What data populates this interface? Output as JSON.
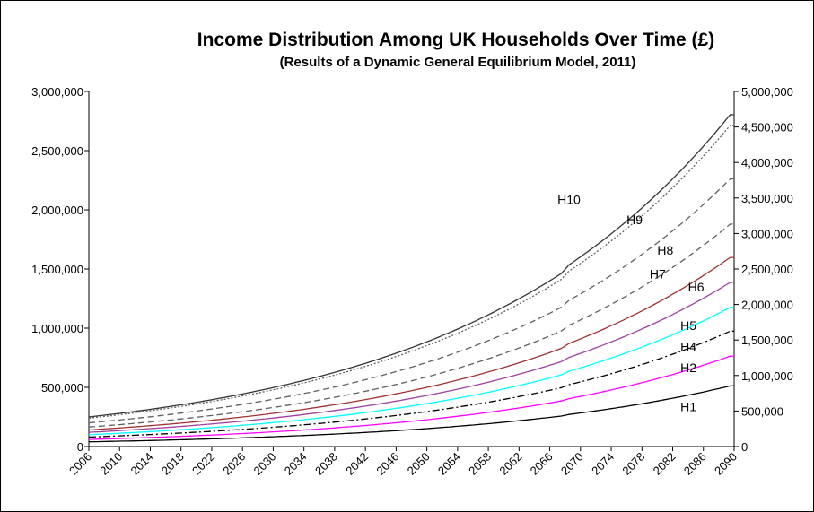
{
  "chart_data": {
    "type": "line",
    "title": "Income  Distribution Among UK Households  Over Time (£)",
    "subtitle": "(Results of a Dynamic General Equilibrium Model, 2011)",
    "xlabel": "",
    "ylabel": "",
    "x_ticks": [
      "2006",
      "2010",
      "2014",
      "2018",
      "2022",
      "2026",
      "2030",
      "2034",
      "2038",
      "2042",
      "2046",
      "2050",
      "2054",
      "2058",
      "2062",
      "2066",
      "2070",
      "2074",
      "2078",
      "2082",
      "2086",
      "2090"
    ],
    "xlim": [
      2006,
      2090
    ],
    "ylim_left": [
      0,
      3000000
    ],
    "yticks_left": [
      "0",
      "500,000",
      "1,000,000",
      "1,500,000",
      "2,000,000",
      "2,500,000",
      "3,000,000"
    ],
    "ylim_right": [
      0,
      5000000
    ],
    "yticks_right": [
      "0",
      "500,000",
      "1,000,000",
      "1,500,000",
      "2,000,000",
      "2,500,000",
      "3,000,000",
      "3,500,000",
      "4,000,000",
      "4,500,000",
      "5,000,000"
    ],
    "grid": false,
    "legend": "none (series labelled inline)",
    "series": [
      {
        "name": "H1",
        "color": "#000000",
        "dash": "solid",
        "start": 40000,
        "end": 510000,
        "label_year": 2083,
        "label_value": 300000
      },
      {
        "name": "H2",
        "color": "#ff00ff",
        "dash": "solid",
        "start": 60000,
        "end": 760000,
        "label_year": 2083,
        "label_value": 630000
      },
      {
        "name": "H4",
        "color": "#000000",
        "dash": "dashdot",
        "start": 80000,
        "end": 970000,
        "label_year": 2083,
        "label_value": 805000
      },
      {
        "name": "H5",
        "color": "#00ffff",
        "dash": "solid",
        "start": 100000,
        "end": 1170000,
        "label_year": 2083,
        "label_value": 985000
      },
      {
        "name": "H6",
        "color": "#a040a0",
        "dash": "solid",
        "start": 120000,
        "end": 1380000,
        "label_year": 2084,
        "label_value": 1310000
      },
      {
        "name": "H7",
        "color": "#a03030",
        "dash": "solid",
        "start": 140000,
        "end": 1590000,
        "label_year": 2079,
        "label_value": 1420000
      },
      {
        "name": "H8",
        "color": "#606060",
        "dash": "dashed",
        "start": 165000,
        "end": 1870000,
        "label_year": 2080,
        "label_value": 1620000
      },
      {
        "name": "H9",
        "color": "#606060",
        "dash": "dashed",
        "start": 200000,
        "end": 2250000,
        "label_year": 2076,
        "label_value": 1880000
      },
      {
        "name": "H10",
        "color": "#606060",
        "dash": "dotted",
        "start": 240000,
        "end": 2700000,
        "label_year": null,
        "label_value": null
      },
      {
        "name": "H10",
        "color": "#333333",
        "dash": "solid",
        "start": 250000,
        "end": 2790000,
        "label_year": 2067,
        "label_value": 2050000
      }
    ]
  }
}
